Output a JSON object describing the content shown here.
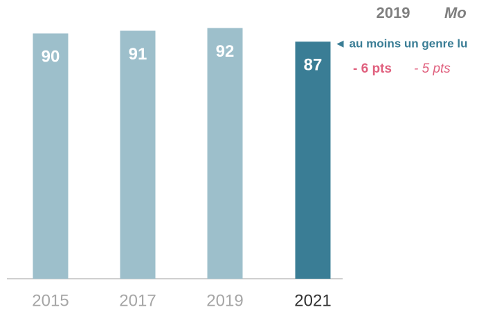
{
  "chart_data": {
    "type": "bar",
    "categories": [
      "2015",
      "2017",
      "2019",
      "2021"
    ],
    "values": [
      90,
      91,
      92,
      87
    ],
    "colors": [
      "#9dbfcb",
      "#9dbfcb",
      "#9dbfcb",
      "#3a7d95"
    ],
    "category_label_colors": [
      "#a6a6a6",
      "#a6a6a6",
      "#a6a6a6",
      "#333333"
    ],
    "ylim": [
      0,
      100
    ],
    "annotations": [
      {
        "text": "2019",
        "color": "#7f7f7f",
        "bold": true,
        "italic": false
      },
      {
        "text": "Mo",
        "color": "#7f7f7f",
        "bold": true,
        "italic": true
      },
      {
        "text": "◄ au moins un genre lu",
        "color": "#3a7d95",
        "bold": true,
        "italic": false
      },
      {
        "text": "- 6 pts",
        "color": "#e0607e",
        "bold": true,
        "italic": false
      },
      {
        "text": "- 5 pts",
        "color": "#e0607e",
        "bold": false,
        "italic": true
      }
    ]
  }
}
